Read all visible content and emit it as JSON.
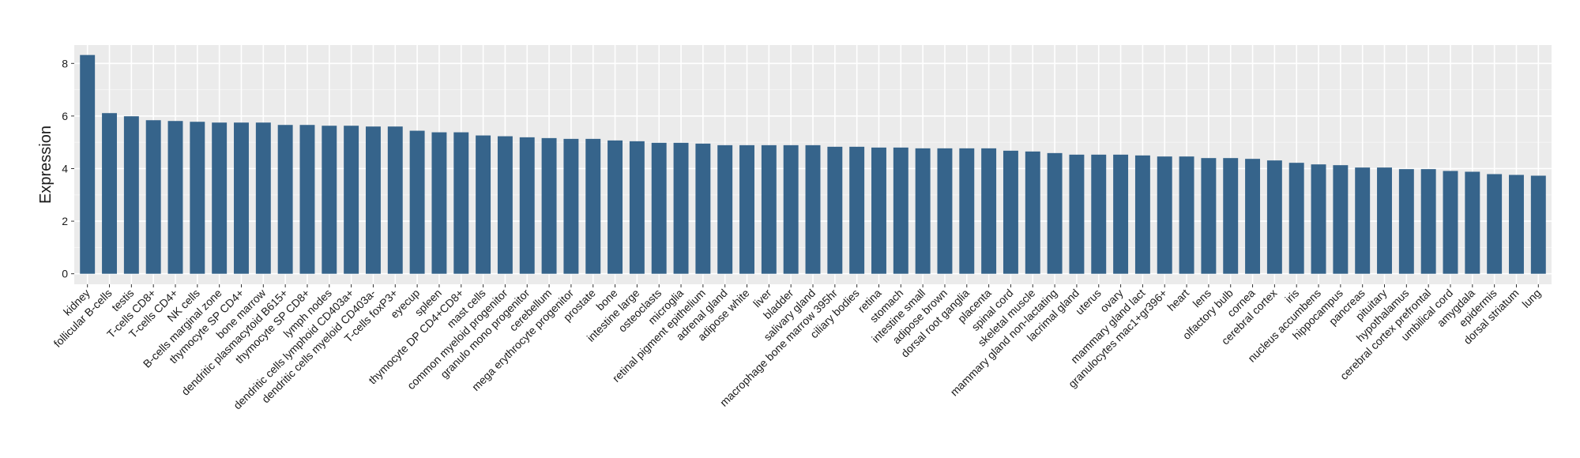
{
  "chart_data": {
    "type": "bar",
    "title": "",
    "xlabel": "",
    "ylabel": "Expression",
    "ylim": [
      -0.4,
      8.7
    ],
    "yticks": [
      0,
      2,
      4,
      6,
      8
    ],
    "grid": true,
    "bar_color": "#36648b",
    "panel_color": "#ebebeb",
    "categories": [
      "kidney",
      "follicular B-cells",
      "testis",
      "T-cells CD8+",
      "T-cells CD4+",
      "NK cells",
      "B-cells marginal zone",
      "thymocyte SP CD4+",
      "bone marrow",
      "dendritic plasmacytoid B615+",
      "thymocyte SP CD8+",
      "lymph nodes",
      "dendritic cells lymphoid CD403a+",
      "dendritic cells myeloid CD403a-",
      "T-cells foxP3+",
      "eyecup",
      "spleen",
      "thymocyte DP CD4+CD8+",
      "mast cells",
      "common myeloid progenitor",
      "granulo mono progenitor",
      "cerebellum",
      "mega erythrocyte progenitor",
      "prostate",
      "bone",
      "intestine large",
      "osteoclasts",
      "microglia",
      "retinal pigment epithelium",
      "adrenal gland",
      "adipose white",
      "liver",
      "bladder",
      "salivary gland",
      "macrophage bone marrow 395hr",
      "ciliary bodies",
      "retina",
      "stomach",
      "intestine small",
      "adipose brown",
      "dorsal root ganglia",
      "placenta",
      "spinal cord",
      "skeletal muscle",
      "mammary gland non-lactating",
      "lacrimal gland",
      "uterus",
      "ovary",
      "mammary gland  lact",
      "granulocytes mac1+gr396+",
      "heart",
      "lens",
      "olfactory bulb",
      "cornea",
      "cerebral cortex",
      "iris",
      "nucleus accumbens",
      "hippocampus",
      "pancreas",
      "pituitary",
      "hypothalamus",
      "cerebral cortex prefrontal",
      "umbilical cord",
      "amygdala",
      "epidermis",
      "dorsal striatum",
      "lung"
    ],
    "values": [
      8.32,
      6.11,
      5.99,
      5.84,
      5.81,
      5.78,
      5.75,
      5.75,
      5.75,
      5.66,
      5.66,
      5.63,
      5.63,
      5.6,
      5.6,
      5.44,
      5.38,
      5.38,
      5.26,
      5.23,
      5.19,
      5.16,
      5.13,
      5.13,
      5.07,
      5.04,
      4.98,
      4.98,
      4.95,
      4.89,
      4.89,
      4.89,
      4.89,
      4.89,
      4.83,
      4.83,
      4.8,
      4.8,
      4.77,
      4.77,
      4.77,
      4.77,
      4.68,
      4.65,
      4.59,
      4.53,
      4.53,
      4.53,
      4.5,
      4.46,
      4.46,
      4.4,
      4.4,
      4.37,
      4.31,
      4.22,
      4.16,
      4.13,
      4.04,
      4.04,
      3.98,
      3.98,
      3.91,
      3.88,
      3.79,
      3.76,
      3.73
    ]
  }
}
